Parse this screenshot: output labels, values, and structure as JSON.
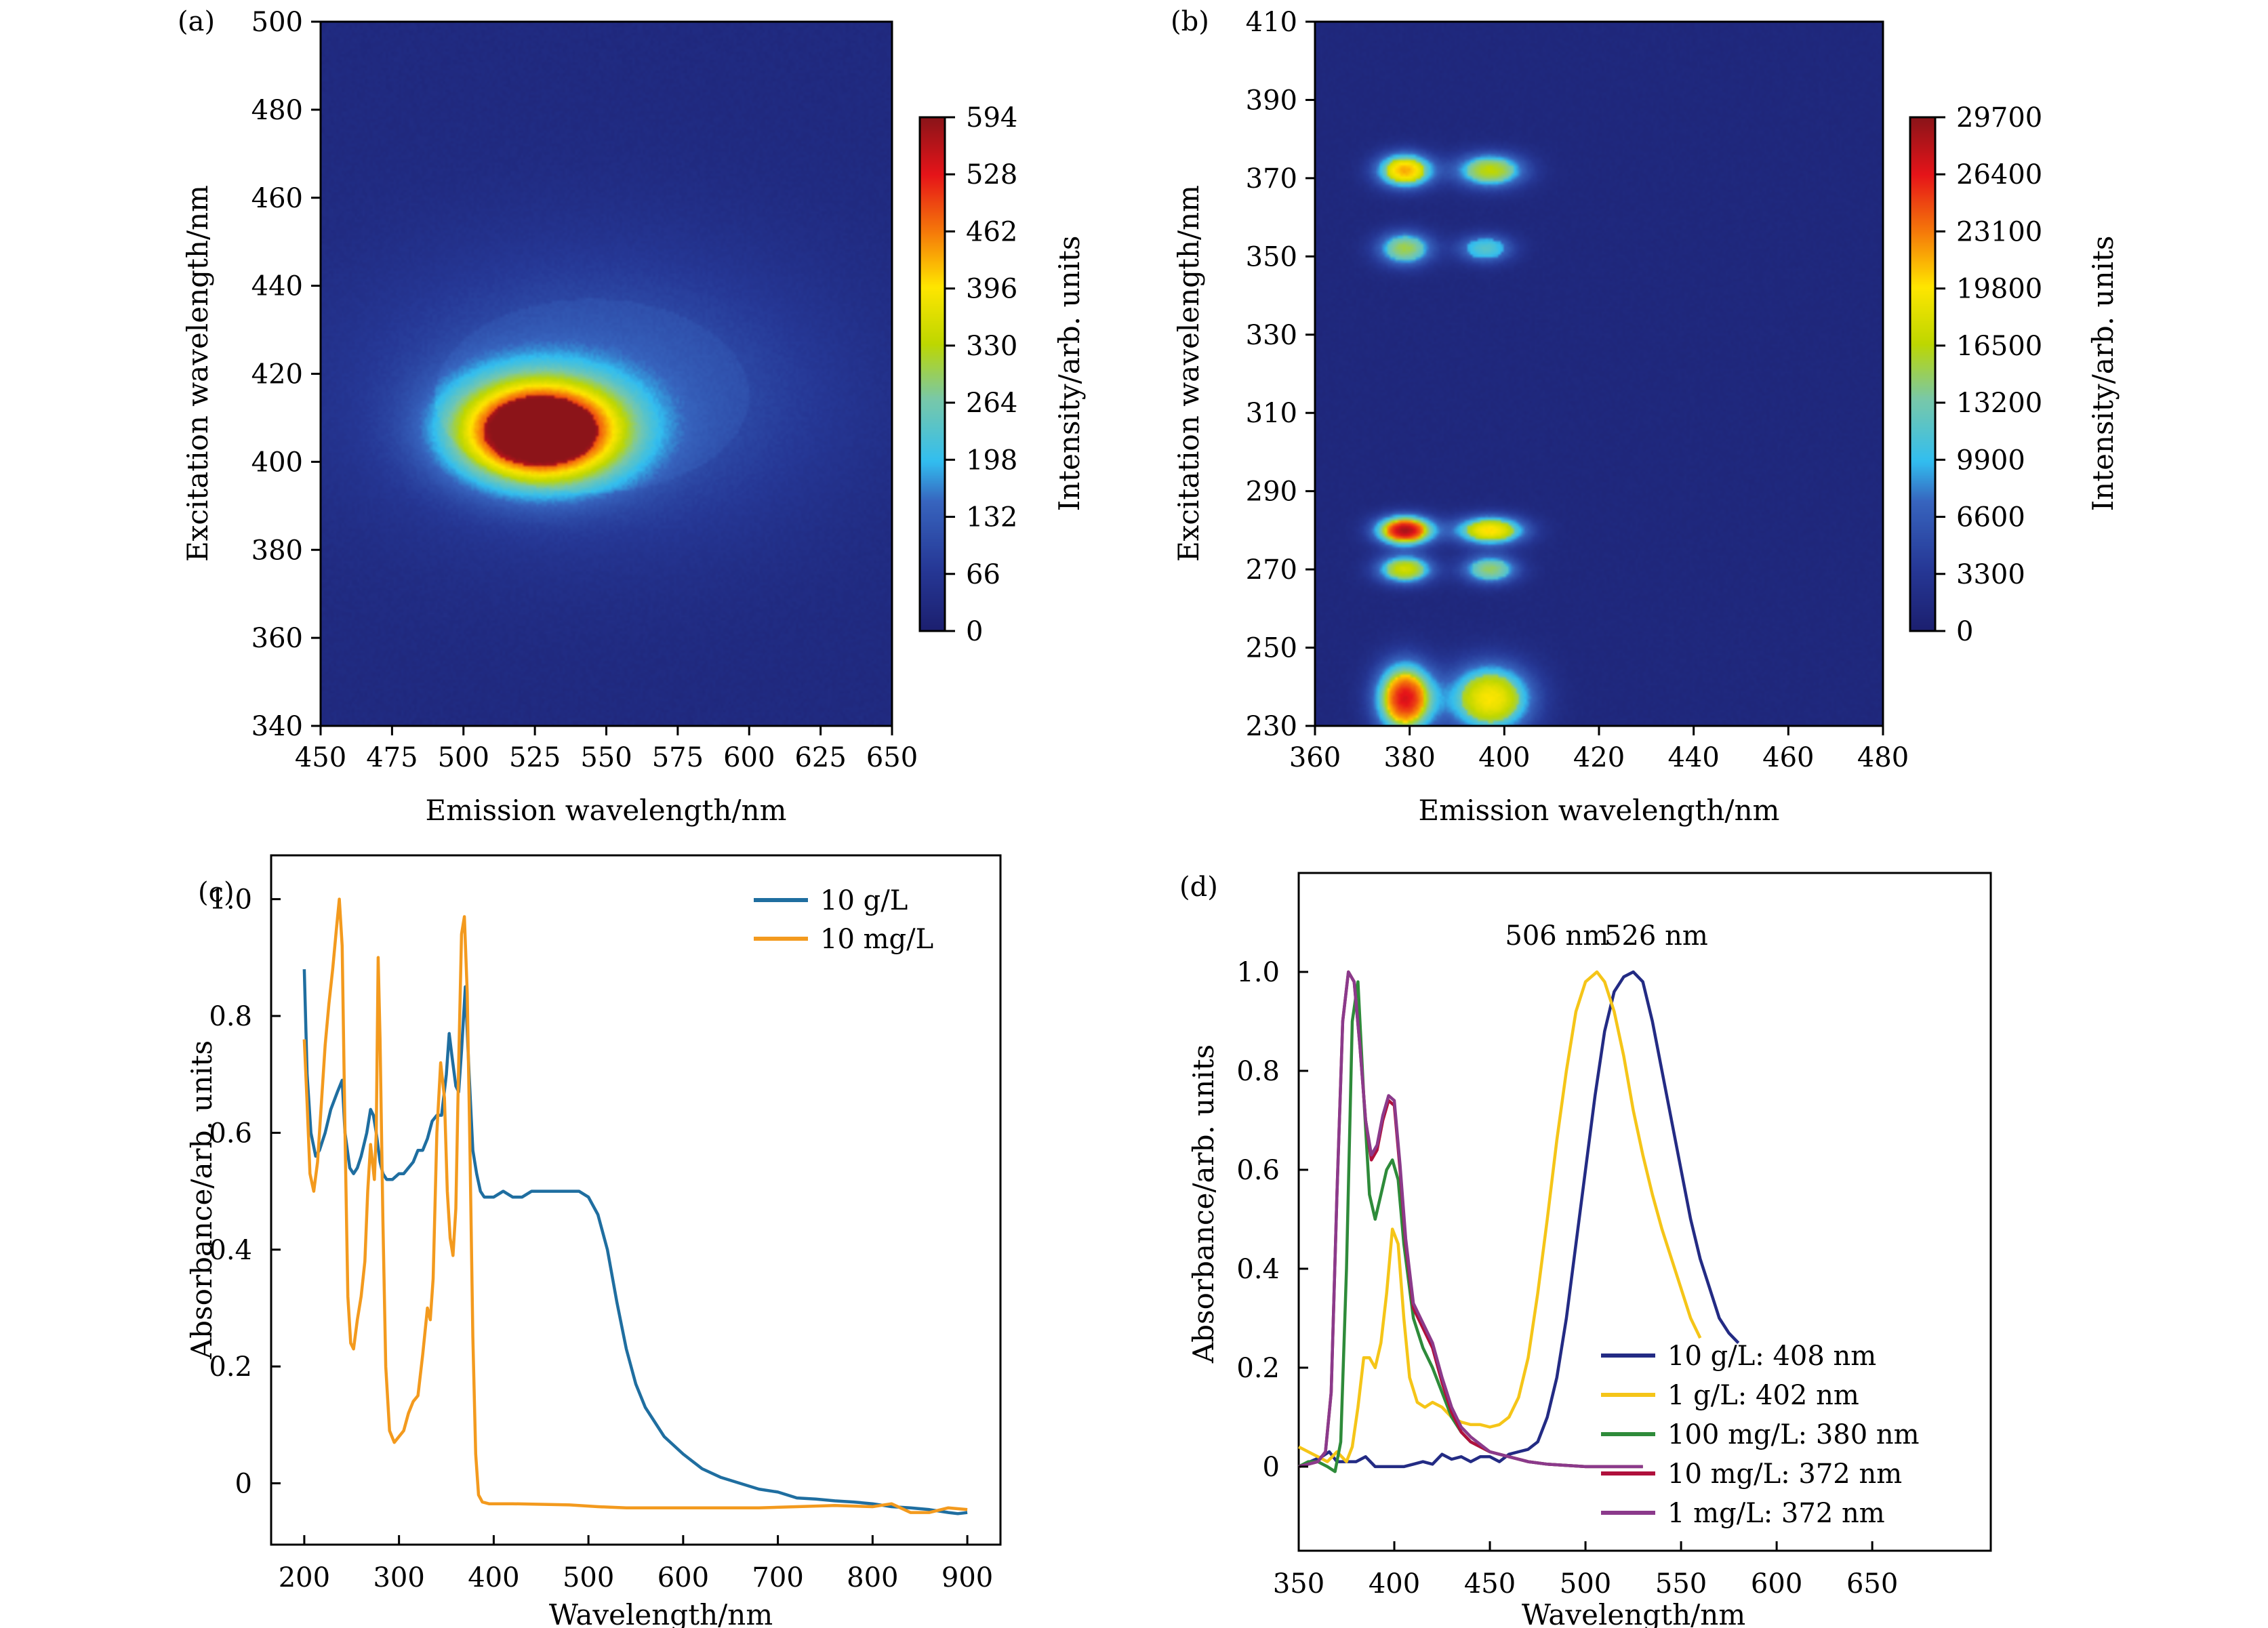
{
  "figure": {
    "panels": [
      "(a)",
      "(b)",
      "(c)",
      "(d)"
    ]
  },
  "chart_data": [
    {
      "id": "a",
      "panel_label": "(a)",
      "type": "heatmap",
      "title": "",
      "xlabel": "Emission wavelength/nm",
      "ylabel": "Excitation wavelength/nm",
      "xlim": [
        450,
        650
      ],
      "ylim": [
        340,
        500
      ],
      "xticks": [
        450,
        475,
        500,
        525,
        550,
        575,
        600,
        625,
        650
      ],
      "yticks": [
        340,
        360,
        380,
        400,
        420,
        440,
        460,
        480,
        500
      ],
      "colorbar": {
        "label": "Intensity/arb. units",
        "range": [
          0,
          594
        ],
        "ticks": [
          0,
          66,
          132,
          198,
          264,
          330,
          396,
          462,
          528,
          594
        ],
        "colormap": "jet"
      },
      "peaks": [
        {
          "emission": 527,
          "excitation": 407,
          "intensity": 594,
          "sigma_em": 20,
          "sigma_ex": 8
        },
        {
          "emission": 545,
          "excitation": 415,
          "intensity": 110,
          "sigma_em": 55,
          "sigma_ex": 22
        }
      ],
      "background_intensity": 30
    },
    {
      "id": "b",
      "panel_label": "(b)",
      "type": "heatmap",
      "title": "",
      "xlabel": "Emission wavelength/nm",
      "ylabel": "Excitation wavelength/nm",
      "xlim": [
        360,
        480
      ],
      "ylim": [
        230,
        410
      ],
      "xticks": [
        360,
        380,
        400,
        420,
        440,
        460,
        480
      ],
      "yticks": [
        230,
        250,
        270,
        290,
        310,
        330,
        350,
        370,
        390,
        410
      ],
      "colorbar": {
        "label": "Intensity/arb. units",
        "range": [
          0,
          29700
        ],
        "ticks": [
          0,
          3300,
          6600,
          9900,
          13200,
          16500,
          19800,
          23100,
          26400,
          29700
        ],
        "colormap": "jet"
      },
      "peaks": [
        {
          "emission": 379,
          "excitation": 372,
          "intensity": 20500,
          "sigma_em": 4,
          "sigma_ex": 3
        },
        {
          "emission": 397,
          "excitation": 372,
          "intensity": 15500,
          "sigma_em": 5,
          "sigma_ex": 3
        },
        {
          "emission": 379,
          "excitation": 352,
          "intensity": 14000,
          "sigma_em": 4,
          "sigma_ex": 3
        },
        {
          "emission": 396,
          "excitation": 352,
          "intensity": 10500,
          "sigma_em": 4,
          "sigma_ex": 2.5
        },
        {
          "emission": 379,
          "excitation": 280,
          "intensity": 27500,
          "sigma_em": 4,
          "sigma_ex": 2.5
        },
        {
          "emission": 397,
          "excitation": 280,
          "intensity": 19000,
          "sigma_em": 5,
          "sigma_ex": 2.5
        },
        {
          "emission": 379,
          "excitation": 270,
          "intensity": 16500,
          "sigma_em": 4,
          "sigma_ex": 2.5
        },
        {
          "emission": 397,
          "excitation": 270,
          "intensity": 13500,
          "sigma_em": 4,
          "sigma_ex": 2.5
        },
        {
          "emission": 379,
          "excitation": 237,
          "intensity": 25500,
          "sigma_em": 4,
          "sigma_ex": 6
        },
        {
          "emission": 397,
          "excitation": 237,
          "intensity": 18500,
          "sigma_em": 6,
          "sigma_ex": 6
        }
      ],
      "background_intensity": 1200
    },
    {
      "id": "c",
      "panel_label": "(c)",
      "type": "line",
      "title": "",
      "xlabel": "Wavelength/nm",
      "ylabel": "Absorbance/arb. units",
      "xlim": [
        165,
        935
      ],
      "ylim": [
        -0.105,
        1.075
      ],
      "xticks": [
        200,
        300,
        400,
        500,
        600,
        700,
        800,
        900
      ],
      "yticks": [
        0,
        0.2,
        0.4,
        0.6,
        0.8,
        1.0
      ],
      "ytick_labels": [
        "0",
        "0.2",
        "0.4",
        "0.6",
        "0.8",
        "1.0"
      ],
      "legend_position": "top-right",
      "series": [
        {
          "name": "10 g/L",
          "color": "#1f6ea0",
          "x": [
            200,
            203,
            207,
            212,
            216,
            222,
            228,
            235,
            240,
            243,
            248,
            252,
            256,
            260,
            266,
            270,
            273,
            276,
            280,
            283,
            287,
            293,
            300,
            305,
            310,
            315,
            320,
            325,
            330,
            335,
            340,
            345,
            350,
            353,
            356,
            360,
            363,
            366,
            370,
            374,
            378,
            382,
            386,
            390,
            395,
            400,
            410,
            420,
            430,
            440,
            450,
            460,
            470,
            480,
            490,
            500,
            510,
            520,
            530,
            540,
            550,
            560,
            580,
            600,
            620,
            640,
            660,
            680,
            700,
            720,
            740,
            760,
            780,
            800,
            820,
            840,
            860,
            880,
            890,
            900
          ],
          "y": [
            0.88,
            0.7,
            0.6,
            0.56,
            0.57,
            0.6,
            0.64,
            0.67,
            0.69,
            0.6,
            0.54,
            0.53,
            0.54,
            0.56,
            0.6,
            0.64,
            0.63,
            0.6,
            0.55,
            0.53,
            0.52,
            0.52,
            0.53,
            0.53,
            0.54,
            0.55,
            0.57,
            0.57,
            0.59,
            0.62,
            0.63,
            0.63,
            0.7,
            0.77,
            0.73,
            0.68,
            0.67,
            0.74,
            0.85,
            0.7,
            0.57,
            0.53,
            0.5,
            0.49,
            0.49,
            0.49,
            0.5,
            0.49,
            0.49,
            0.5,
            0.5,
            0.5,
            0.5,
            0.5,
            0.5,
            0.49,
            0.46,
            0.4,
            0.31,
            0.23,
            0.17,
            0.13,
            0.08,
            0.05,
            0.025,
            0.01,
            0.0,
            -0.01,
            -0.015,
            -0.025,
            -0.027,
            -0.03,
            -0.032,
            -0.035,
            -0.04,
            -0.042,
            -0.045,
            -0.05,
            -0.052,
            -0.05
          ]
        },
        {
          "name": "10 mg/L",
          "color": "#f39a1e",
          "x": [
            200,
            203,
            206,
            210,
            214,
            218,
            222,
            226,
            230,
            234,
            237,
            240,
            243,
            246,
            249,
            252,
            256,
            260,
            264,
            267,
            270,
            272,
            274,
            276,
            278,
            280,
            283,
            286,
            290,
            295,
            300,
            305,
            310,
            315,
            320,
            325,
            330,
            333,
            336,
            340,
            344,
            348,
            351,
            354,
            357,
            360,
            363,
            366,
            369,
            372,
            375,
            378,
            381,
            384,
            388,
            395,
            420,
            450,
            480,
            510,
            540,
            570,
            600,
            640,
            680,
            720,
            760,
            800,
            820,
            840,
            860,
            880,
            900
          ],
          "y": [
            0.76,
            0.65,
            0.53,
            0.5,
            0.55,
            0.65,
            0.75,
            0.82,
            0.88,
            0.95,
            1.0,
            0.92,
            0.6,
            0.32,
            0.24,
            0.23,
            0.28,
            0.32,
            0.38,
            0.5,
            0.58,
            0.55,
            0.52,
            0.6,
            0.9,
            0.76,
            0.45,
            0.2,
            0.09,
            0.07,
            0.08,
            0.09,
            0.12,
            0.14,
            0.15,
            0.22,
            0.3,
            0.28,
            0.35,
            0.6,
            0.72,
            0.66,
            0.5,
            0.42,
            0.39,
            0.47,
            0.72,
            0.94,
            0.97,
            0.84,
            0.56,
            0.25,
            0.05,
            -0.02,
            -0.032,
            -0.035,
            -0.035,
            -0.036,
            -0.037,
            -0.04,
            -0.042,
            -0.042,
            -0.042,
            -0.042,
            -0.042,
            -0.04,
            -0.038,
            -0.04,
            -0.035,
            -0.05,
            -0.05,
            -0.042,
            -0.045
          ]
        }
      ]
    },
    {
      "id": "d",
      "panel_label": "(d)",
      "type": "line",
      "title": "",
      "xlabel": "Wavelength/nm",
      "ylabel": "Absorbance/arb. units",
      "xlim": [
        350,
        712
      ],
      "ylim": [
        -0.17,
        1.2
      ],
      "xticks": [
        350,
        400,
        450,
        500,
        550,
        600,
        650
      ],
      "yticks": [
        0,
        0.2,
        0.4,
        0.6,
        0.8,
        1.0
      ],
      "ytick_labels": [
        "0",
        "0.2",
        "0.4",
        "0.6",
        "0.8",
        "1.0"
      ],
      "annotations": [
        {
          "text": "506 nm",
          "x": 485,
          "y": 1.055
        },
        {
          "text": "526 nm",
          "x": 537,
          "y": 1.055
        }
      ],
      "legend_position": "bottom-right",
      "series": [
        {
          "name": "10 g/L: 408 nm",
          "color": "#232b84",
          "x": [
            350,
            356,
            362,
            366,
            370,
            375,
            380,
            385,
            390,
            395,
            400,
            405,
            410,
            415,
            420,
            425,
            430,
            435,
            440,
            445,
            450,
            455,
            460,
            465,
            470,
            475,
            480,
            485,
            490,
            495,
            500,
            505,
            510,
            515,
            520,
            525,
            530,
            535,
            540,
            545,
            550,
            555,
            560,
            565,
            570,
            575,
            580
          ],
          "y": [
            0.0,
            0.01,
            0.02,
            0.03,
            0.01,
            0.01,
            0.01,
            0.02,
            0.0,
            0.0,
            0.0,
            0.0,
            0.005,
            0.01,
            0.005,
            0.025,
            0.015,
            0.02,
            0.01,
            0.02,
            0.02,
            0.01,
            0.025,
            0.03,
            0.035,
            0.05,
            0.1,
            0.18,
            0.3,
            0.45,
            0.6,
            0.75,
            0.88,
            0.96,
            0.99,
            1.0,
            0.98,
            0.9,
            0.8,
            0.7,
            0.6,
            0.5,
            0.42,
            0.36,
            0.3,
            0.27,
            0.25
          ]
        },
        {
          "name": "1 g/L: 402 nm",
          "color": "#f5c518",
          "x": [
            350,
            355,
            360,
            365,
            370,
            375,
            378,
            381,
            384,
            387,
            390,
            393,
            396,
            399,
            402,
            405,
            408,
            412,
            416,
            420,
            425,
            430,
            435,
            440,
            445,
            450,
            455,
            460,
            465,
            470,
            475,
            480,
            485,
            490,
            495,
            500,
            506,
            510,
            515,
            520,
            525,
            530,
            535,
            540,
            545,
            550,
            555,
            560
          ],
          "y": [
            0.04,
            0.03,
            0.02,
            0.01,
            0.03,
            0.01,
            0.04,
            0.12,
            0.22,
            0.22,
            0.2,
            0.25,
            0.35,
            0.48,
            0.45,
            0.3,
            0.18,
            0.13,
            0.12,
            0.13,
            0.12,
            0.1,
            0.09,
            0.085,
            0.085,
            0.08,
            0.085,
            0.1,
            0.14,
            0.22,
            0.35,
            0.5,
            0.66,
            0.8,
            0.92,
            0.98,
            1.0,
            0.98,
            0.92,
            0.83,
            0.72,
            0.63,
            0.55,
            0.48,
            0.42,
            0.36,
            0.3,
            0.26
          ]
        },
        {
          "name": "100 mg/L: 380 nm",
          "color": "#2e8b3a",
          "x": [
            350,
            355,
            360,
            365,
            369,
            372,
            375,
            378,
            381,
            384,
            387,
            390,
            393,
            396,
            399,
            402,
            405,
            410,
            415,
            420,
            425,
            430,
            435,
            440,
            450,
            460,
            470,
            480,
            500,
            530
          ],
          "y": [
            0.0,
            0.01,
            0.01,
            0.0,
            -0.01,
            0.05,
            0.4,
            0.9,
            0.98,
            0.75,
            0.55,
            0.5,
            0.55,
            0.6,
            0.62,
            0.58,
            0.45,
            0.3,
            0.24,
            0.2,
            0.15,
            0.1,
            0.07,
            0.05,
            0.03,
            0.02,
            0.01,
            0.005,
            0.0,
            0.0
          ]
        },
        {
          "name": "10 mg/L: 372 nm",
          "color": "#b0103c",
          "x": [
            350,
            355,
            360,
            364,
            367,
            370,
            373,
            376,
            379,
            382,
            385,
            388,
            391,
            394,
            397,
            400,
            403,
            406,
            410,
            415,
            420,
            425,
            430,
            435,
            440,
            450,
            460,
            470,
            480,
            500,
            530
          ],
          "y": [
            0.0,
            0.005,
            0.01,
            0.03,
            0.15,
            0.55,
            0.9,
            1.0,
            0.98,
            0.85,
            0.7,
            0.62,
            0.64,
            0.7,
            0.74,
            0.73,
            0.6,
            0.45,
            0.32,
            0.28,
            0.24,
            0.17,
            0.11,
            0.07,
            0.05,
            0.03,
            0.02,
            0.01,
            0.005,
            0.0,
            0.0
          ]
        },
        {
          "name": "1 mg/L: 372 nm",
          "color": "#8b3a8b",
          "x": [
            350,
            355,
            360,
            364,
            367,
            370,
            373,
            376,
            379,
            382,
            385,
            388,
            391,
            394,
            397,
            400,
            403,
            406,
            410,
            415,
            420,
            425,
            430,
            435,
            440,
            450,
            460,
            470,
            480,
            500,
            530
          ],
          "y": [
            0.0,
            0.005,
            0.01,
            0.03,
            0.15,
            0.55,
            0.9,
            1.0,
            0.98,
            0.85,
            0.7,
            0.63,
            0.65,
            0.71,
            0.75,
            0.74,
            0.61,
            0.46,
            0.33,
            0.29,
            0.25,
            0.18,
            0.12,
            0.08,
            0.06,
            0.03,
            0.02,
            0.01,
            0.005,
            0.0,
            0.0
          ]
        }
      ]
    }
  ]
}
